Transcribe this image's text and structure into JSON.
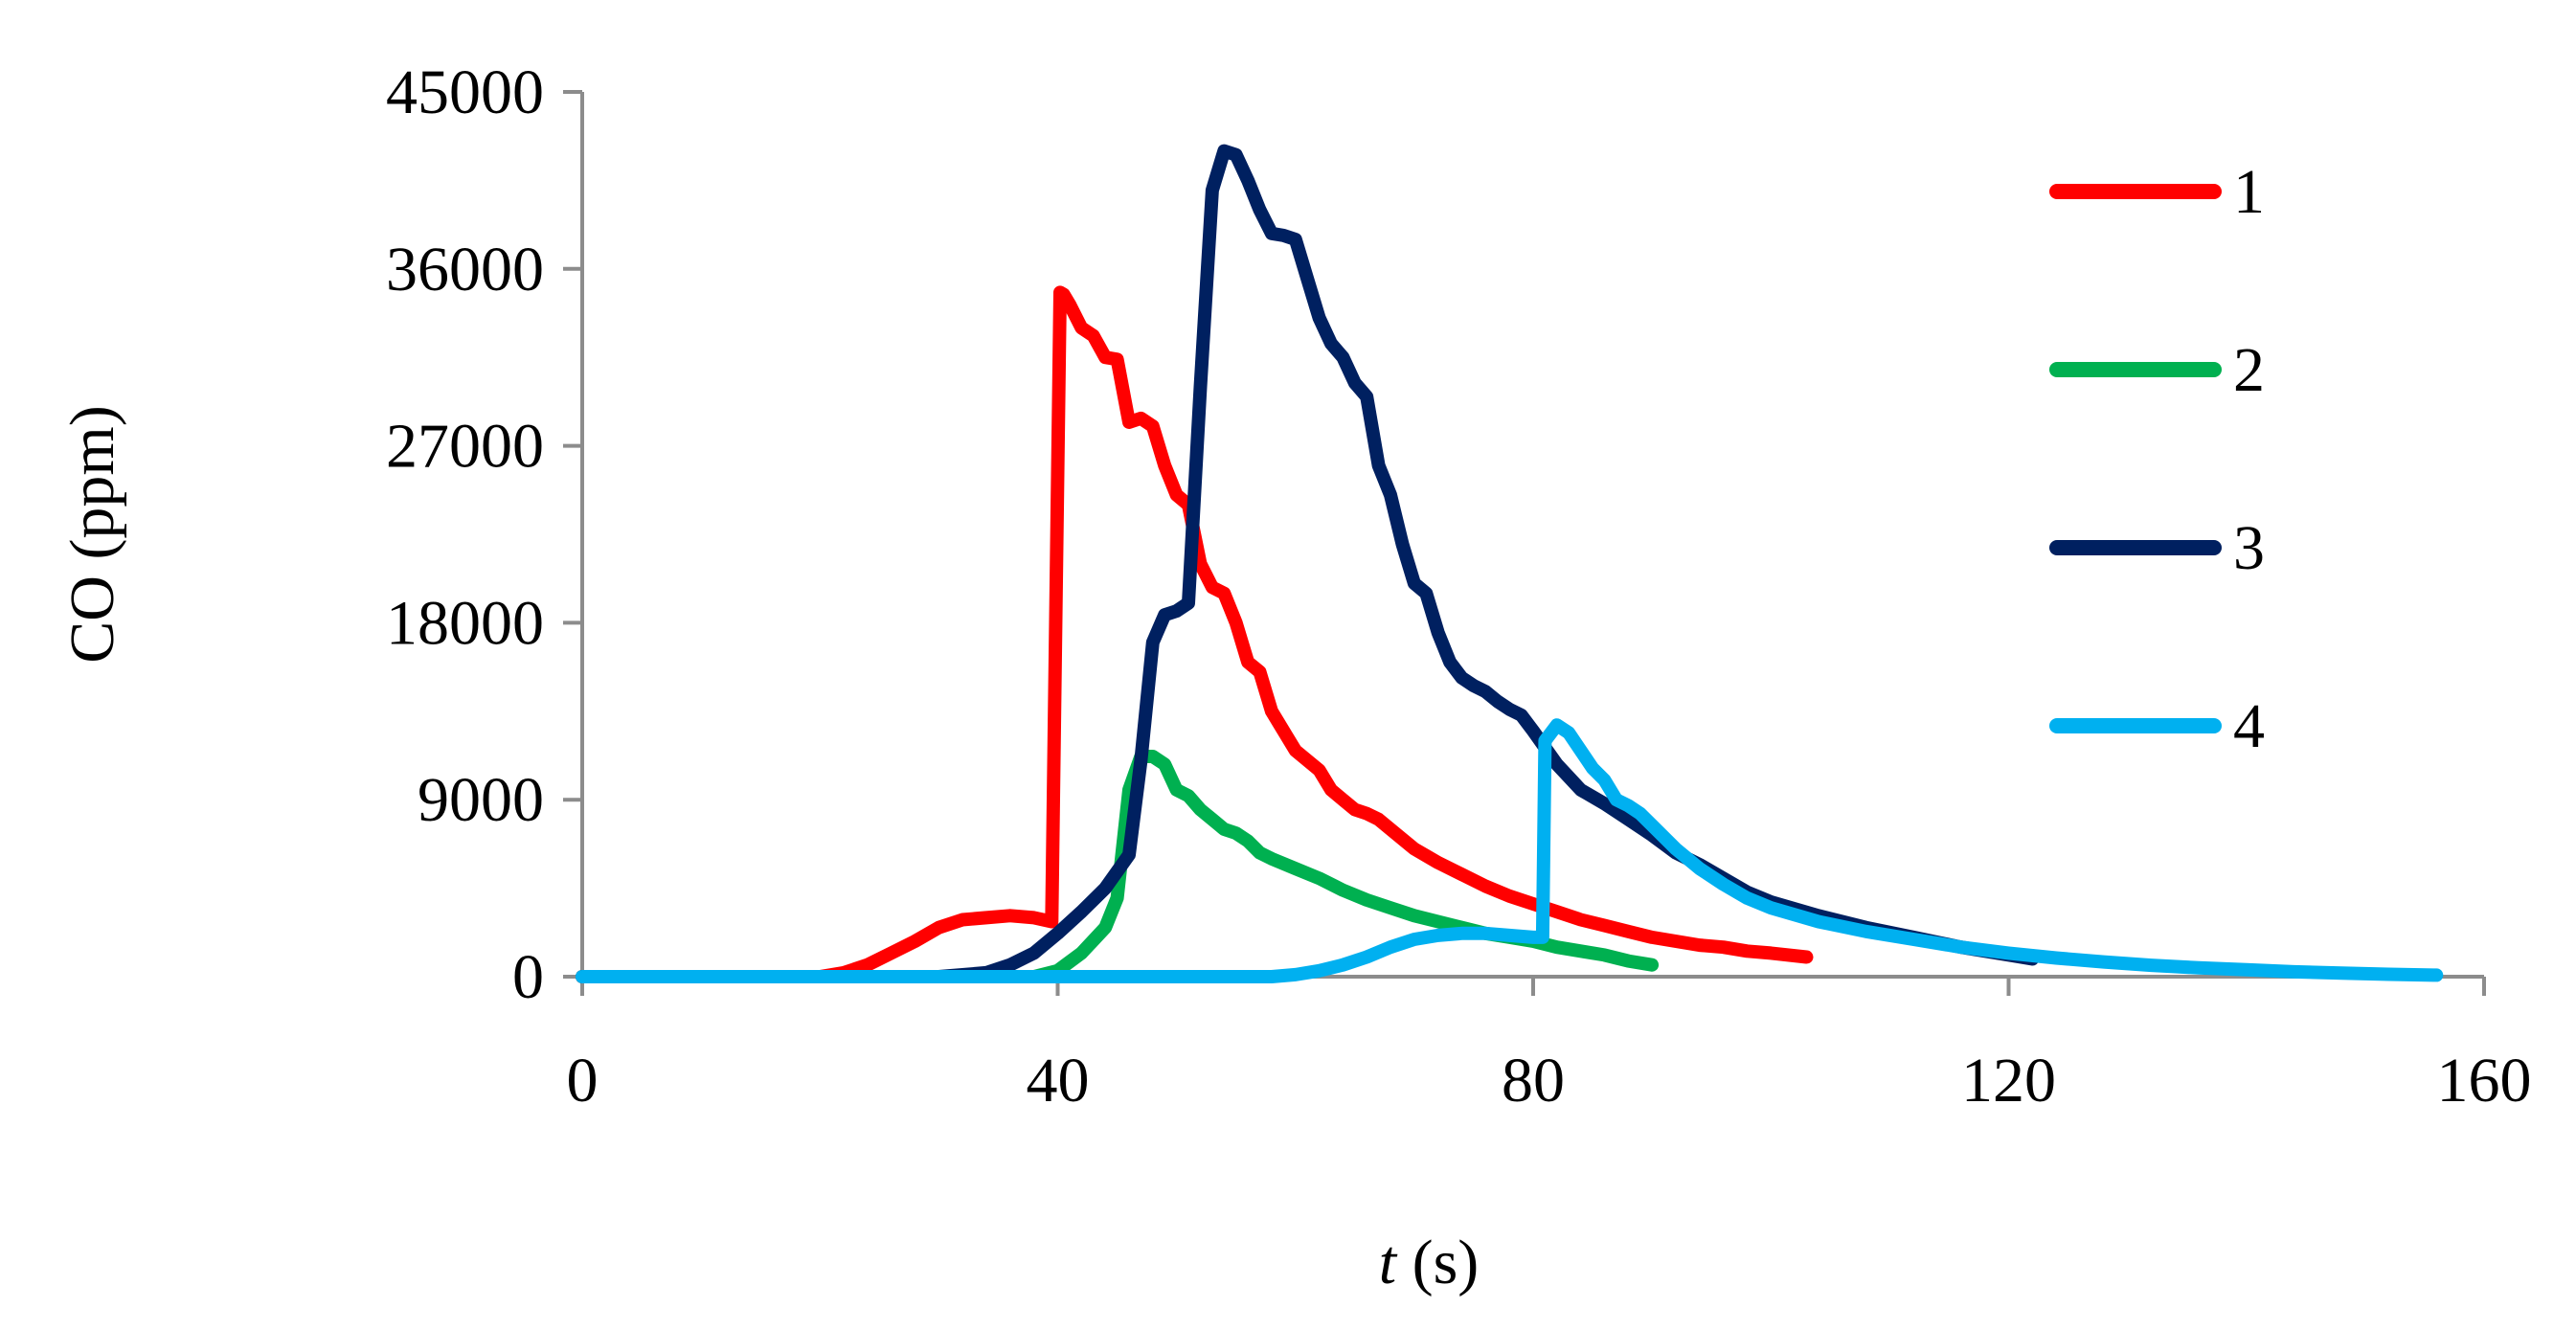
{
  "chart_data": {
    "type": "line",
    "xlabel_var": "t",
    "xlabel_unit": " (s)",
    "ylabel": "CO (ppm)",
    "xlim": [
      0,
      160
    ],
    "ylim": [
      0,
      45000
    ],
    "xticks": [
      0,
      40,
      80,
      120,
      160
    ],
    "yticks": [
      0,
      9000,
      18000,
      27000,
      36000,
      45000
    ],
    "grid": false,
    "legend_position": "top-right",
    "series": [
      {
        "name": "1",
        "color": "#ff0000",
        "x": [
          0,
          10,
          20,
          22,
          24,
          26,
          28,
          30,
          32,
          34,
          36,
          38,
          39.5,
          40.2,
          40.5,
          41,
          42,
          43,
          44,
          45,
          46,
          47,
          48,
          49,
          50,
          51,
          52,
          53,
          54,
          55,
          56,
          57,
          58,
          59,
          60,
          61,
          62,
          63,
          64,
          65,
          66,
          67,
          68,
          70,
          72,
          74,
          76,
          78,
          80,
          82,
          84,
          86,
          88,
          90,
          92,
          94,
          96,
          98,
          100,
          103
        ],
        "y": [
          0,
          0,
          0,
          200,
          600,
          1200,
          1800,
          2500,
          2900,
          3000,
          3100,
          3000,
          2800,
          34800,
          34700,
          34200,
          33000,
          32600,
          31500,
          31400,
          28200,
          28400,
          28000,
          26000,
          24500,
          24000,
          21000,
          19800,
          19500,
          18000,
          16000,
          15500,
          13500,
          12500,
          11500,
          11000,
          10500,
          9500,
          9000,
          8500,
          8300,
          8000,
          7500,
          6500,
          5800,
          5200,
          4600,
          4100,
          3700,
          3300,
          2900,
          2600,
          2300,
          2000,
          1800,
          1600,
          1500,
          1300,
          1200,
          1000
        ]
      },
      {
        "name": "2",
        "color": "#00b050",
        "x": [
          0,
          30,
          38,
          40,
          42,
          44,
          45,
          46,
          47,
          48,
          49,
          50,
          51,
          52,
          53,
          54,
          55,
          56,
          57,
          58,
          60,
          62,
          64,
          66,
          68,
          70,
          72,
          74,
          76,
          78,
          80,
          82,
          84,
          86,
          88,
          90
        ],
        "y": [
          0,
          0,
          0,
          300,
          1200,
          2500,
          4000,
          9500,
          11200,
          11200,
          10800,
          9500,
          9200,
          8500,
          8000,
          7500,
          7300,
          6900,
          6300,
          6000,
          5500,
          5000,
          4400,
          3900,
          3500,
          3100,
          2800,
          2500,
          2200,
          2000,
          1800,
          1500,
          1300,
          1100,
          800,
          600
        ]
      },
      {
        "name": "3",
        "color": "#002060",
        "x": [
          0,
          30,
          34,
          36,
          38,
          40,
          42,
          44,
          46,
          47,
          48,
          49,
          50,
          51,
          52,
          53,
          54,
          55,
          56,
          57,
          58,
          59,
          60,
          61,
          62,
          63,
          64,
          65,
          66,
          67,
          68,
          69,
          70,
          71,
          72,
          73,
          74,
          75,
          76,
          77,
          78,
          79,
          80,
          82,
          84,
          86,
          88,
          90,
          92,
          94,
          96,
          98,
          100,
          104,
          108,
          112,
          116,
          120,
          122
        ],
        "y": [
          0,
          0,
          200,
          600,
          1200,
          2200,
          3300,
          4500,
          6200,
          11000,
          17000,
          18400,
          18600,
          19000,
          30000,
          40000,
          42000,
          41800,
          40500,
          39000,
          37800,
          37700,
          37500,
          35500,
          33500,
          32200,
          31500,
          30200,
          29500,
          26000,
          24500,
          22000,
          20000,
          19500,
          17500,
          16000,
          15200,
          14800,
          14500,
          14000,
          13600,
          13300,
          12500,
          10800,
          9500,
          8800,
          8000,
          7200,
          6300,
          5700,
          5000,
          4300,
          3800,
          3100,
          2500,
          2000,
          1500,
          1100,
          900
        ]
      },
      {
        "name": "4",
        "color": "#00b0f0",
        "x": [
          0,
          50,
          58,
          60,
          62,
          64,
          66,
          68,
          70,
          72,
          74,
          76,
          78,
          80,
          80.8,
          81,
          82,
          83,
          84,
          85,
          86,
          87,
          88,
          89,
          90,
          92,
          94,
          96,
          98,
          100,
          104,
          108,
          112,
          116,
          120,
          124,
          128,
          132,
          136,
          140,
          144,
          148,
          152,
          156
        ],
        "y": [
          0,
          0,
          0,
          100,
          300,
          600,
          1000,
          1500,
          1900,
          2100,
          2200,
          2200,
          2100,
          2000,
          2000,
          12000,
          12800,
          12400,
          11500,
          10600,
          10000,
          9000,
          8700,
          8300,
          7700,
          6500,
          5500,
          4700,
          4000,
          3500,
          2800,
          2300,
          1900,
          1500,
          1200,
          950,
          750,
          580,
          450,
          350,
          250,
          180,
          120,
          80
        ]
      }
    ]
  }
}
